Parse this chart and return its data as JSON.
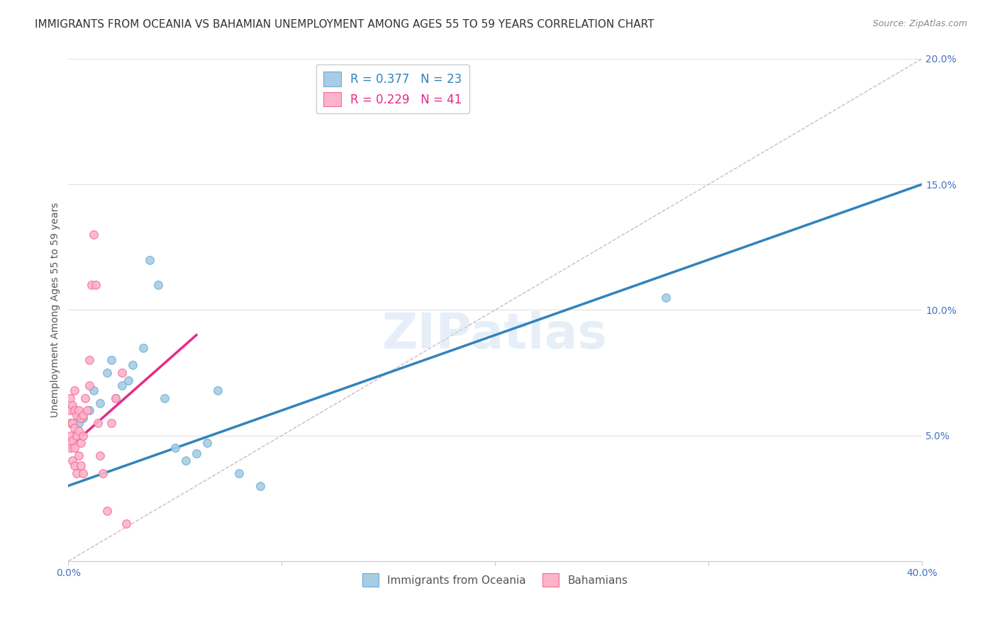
{
  "title": "IMMIGRANTS FROM OCEANIA VS BAHAMIAN UNEMPLOYMENT AMONG AGES 55 TO 59 YEARS CORRELATION CHART",
  "source": "Source: ZipAtlas.com",
  "ylabel": "Unemployment Among Ages 55 to 59 years",
  "xlim": [
    0.0,
    0.4
  ],
  "ylim": [
    0.0,
    0.2
  ],
  "xticks": [
    0.0,
    0.1,
    0.2,
    0.3,
    0.4
  ],
  "xticklabels": [
    "0.0%",
    "",
    "",
    "",
    "40.0%"
  ],
  "yticks": [
    0.0,
    0.05,
    0.1,
    0.15,
    0.2
  ],
  "yticklabels": [
    "",
    "5.0%",
    "10.0%",
    "15.0%",
    "20.0%"
  ],
  "background_color": "#ffffff",
  "grid_color": "#e0e0e0",
  "watermark": "ZIPatlas",
  "legend_R_blue": "0.377",
  "legend_N_blue": "23",
  "legend_R_pink": "0.229",
  "legend_N_pink": "41",
  "blue_scatter_x": [
    0.005,
    0.007,
    0.01,
    0.012,
    0.015,
    0.018,
    0.02,
    0.022,
    0.025,
    0.028,
    0.03,
    0.035,
    0.038,
    0.042,
    0.045,
    0.05,
    0.055,
    0.06,
    0.065,
    0.07,
    0.08,
    0.28,
    0.09
  ],
  "blue_scatter_y": [
    0.055,
    0.057,
    0.06,
    0.068,
    0.063,
    0.075,
    0.08,
    0.065,
    0.07,
    0.072,
    0.078,
    0.085,
    0.12,
    0.11,
    0.065,
    0.045,
    0.04,
    0.043,
    0.047,
    0.068,
    0.035,
    0.105,
    0.03
  ],
  "pink_scatter_x": [
    0.001,
    0.001,
    0.001,
    0.001,
    0.001,
    0.002,
    0.002,
    0.002,
    0.002,
    0.003,
    0.003,
    0.003,
    0.003,
    0.003,
    0.004,
    0.004,
    0.004,
    0.005,
    0.005,
    0.005,
    0.006,
    0.006,
    0.006,
    0.007,
    0.007,
    0.007,
    0.008,
    0.009,
    0.01,
    0.01,
    0.011,
    0.012,
    0.013,
    0.014,
    0.015,
    0.016,
    0.018,
    0.02,
    0.022,
    0.025,
    0.027
  ],
  "pink_scatter_y": [
    0.045,
    0.05,
    0.055,
    0.06,
    0.065,
    0.04,
    0.048,
    0.055,
    0.062,
    0.038,
    0.045,
    0.053,
    0.06,
    0.068,
    0.035,
    0.05,
    0.058,
    0.042,
    0.052,
    0.06,
    0.038,
    0.047,
    0.057,
    0.035,
    0.05,
    0.058,
    0.065,
    0.06,
    0.07,
    0.08,
    0.11,
    0.13,
    0.11,
    0.055,
    0.042,
    0.035,
    0.02,
    0.055,
    0.065,
    0.075,
    0.015
  ],
  "blue_line_x": [
    0.0,
    0.4
  ],
  "blue_line_y": [
    0.03,
    0.15
  ],
  "pink_line_x": [
    0.0,
    0.06
  ],
  "pink_line_y": [
    0.045,
    0.09
  ],
  "diagonal_line_x": [
    0.0,
    0.4
  ],
  "diagonal_line_y": [
    0.0,
    0.2
  ],
  "blue_color": "#a8cce4",
  "blue_edge_color": "#6baed6",
  "pink_color": "#fbb4c8",
  "pink_edge_color": "#f768a1",
  "blue_line_color": "#3182bd",
  "pink_line_color": "#e7298a",
  "diagonal_color": "#d0b8c8",
  "title_color": "#333333",
  "axis_color": "#4472c4",
  "marker_size": 70,
  "title_fontsize": 11,
  "axis_label_fontsize": 10,
  "tick_fontsize": 10
}
